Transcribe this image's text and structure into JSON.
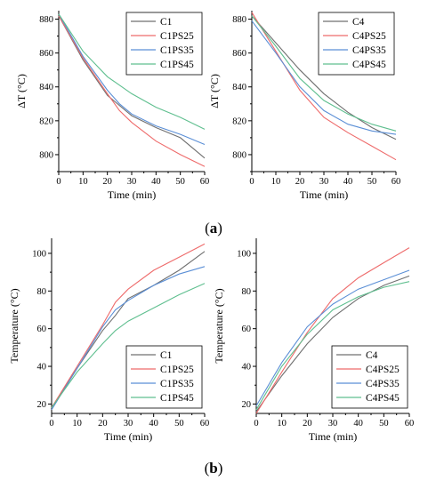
{
  "colors": {
    "C": "#707070",
    "PS25": "#ee6b6b",
    "PS35": "#5b8fd6",
    "PS45": "#5fbf8f",
    "axis": "#000000"
  },
  "panel_labels": [
    {
      "open": "(",
      "letter": "a",
      "close": ")"
    },
    {
      "open": "(",
      "letter": "b",
      "close": ")"
    }
  ],
  "chart_data": [
    {
      "type": "line",
      "ylabel": "ΔT (°C)",
      "xlabel": "Time (min)",
      "xlim": [
        0,
        60
      ],
      "ylim": [
        790,
        885
      ],
      "xticks": [
        0,
        10,
        20,
        30,
        40,
        50,
        60
      ],
      "yticks": [
        800,
        820,
        840,
        860,
        880
      ],
      "legend_position": "top-right",
      "series": [
        {
          "name": "C1",
          "color_key": "C",
          "x": [
            0,
            10,
            20,
            30,
            40,
            50,
            60
          ],
          "y": [
            882,
            856,
            835,
            823,
            816,
            810,
            798
          ]
        },
        {
          "name": "C1PS25",
          "color_key": "PS25",
          "x": [
            0,
            10,
            20,
            25,
            30,
            40,
            50,
            60
          ],
          "y": [
            882,
            857,
            836,
            826,
            819,
            808,
            800,
            793
          ]
        },
        {
          "name": "C1PS35",
          "color_key": "PS35",
          "x": [
            0,
            10,
            20,
            25,
            30,
            40,
            50,
            60
          ],
          "y": [
            883,
            858,
            838,
            830,
            824,
            817,
            812,
            806
          ]
        },
        {
          "name": "C1PS45",
          "color_key": "PS45",
          "x": [
            0,
            10,
            20,
            25,
            30,
            40,
            50,
            60
          ],
          "y": [
            883,
            861,
            846,
            841,
            836,
            828,
            822,
            815
          ]
        }
      ]
    },
    {
      "type": "line",
      "ylabel": "ΔT (°C)",
      "xlabel": "Time (min)",
      "xlim": [
        0,
        60
      ],
      "ylim": [
        790,
        885
      ],
      "xticks": [
        0,
        10,
        20,
        30,
        40,
        50,
        60
      ],
      "yticks": [
        800,
        820,
        840,
        860,
        880
      ],
      "legend_position": "top-right",
      "series": [
        {
          "name": "C4",
          "color_key": "C",
          "x": [
            0,
            10,
            20,
            30,
            40,
            50,
            60
          ],
          "y": [
            882,
            866,
            850,
            836,
            825,
            816,
            809
          ]
        },
        {
          "name": "C4PS25",
          "color_key": "PS25",
          "x": [
            0,
            10,
            20,
            30,
            40,
            50,
            60
          ],
          "y": [
            884,
            861,
            838,
            822,
            813,
            805,
            797
          ]
        },
        {
          "name": "C4PS35",
          "color_key": "PS35",
          "x": [
            0,
            10,
            20,
            30,
            40,
            50,
            60
          ],
          "y": [
            879,
            860,
            840,
            826,
            818,
            814,
            812
          ]
        },
        {
          "name": "C4PS45",
          "color_key": "PS45",
          "x": [
            0,
            10,
            20,
            30,
            40,
            50,
            60
          ],
          "y": [
            882,
            864,
            845,
            832,
            824,
            818,
            814
          ]
        }
      ]
    },
    {
      "type": "line",
      "ylabel": "Temperature (°C)",
      "xlabel": "Time (min)",
      "xlim": [
        0,
        60
      ],
      "ylim": [
        15,
        108
      ],
      "xticks": [
        0,
        10,
        20,
        30,
        40,
        50,
        60
      ],
      "yticks": [
        20,
        40,
        60,
        80,
        100
      ],
      "legend_position": "bottom-right",
      "series": [
        {
          "name": "C1",
          "color_key": "C",
          "x": [
            0,
            10,
            20,
            25,
            30,
            40,
            50,
            60
          ],
          "y": [
            18,
            39,
            59,
            67,
            76,
            83,
            91,
            101
          ]
        },
        {
          "name": "C1PS25",
          "color_key": "PS25",
          "x": [
            0,
            10,
            20,
            25,
            30,
            40,
            50,
            60
          ],
          "y": [
            18,
            40,
            62,
            74,
            81,
            91,
            98,
            105
          ]
        },
        {
          "name": "C1PS35",
          "color_key": "PS35",
          "x": [
            0,
            10,
            20,
            25,
            30,
            40,
            50,
            60
          ],
          "y": [
            17,
            39,
            61,
            70,
            75,
            83,
            89,
            93
          ]
        },
        {
          "name": "C1PS45",
          "color_key": "PS45",
          "x": [
            0,
            10,
            20,
            25,
            30,
            40,
            50,
            60
          ],
          "y": [
            18,
            37,
            52,
            59,
            64,
            71,
            78,
            84
          ]
        }
      ]
    },
    {
      "type": "line",
      "ylabel": "Temperature (°C)",
      "xlabel": "Time (min)",
      "xlim": [
        0,
        60
      ],
      "ylim": [
        15,
        108
      ],
      "xticks": [
        0,
        10,
        20,
        30,
        40,
        50,
        60
      ],
      "yticks": [
        20,
        40,
        60,
        80,
        100
      ],
      "legend_position": "bottom-right",
      "series": [
        {
          "name": "C4",
          "color_key": "C",
          "x": [
            0,
            10,
            20,
            30,
            40,
            50,
            60
          ],
          "y": [
            16,
            35,
            52,
            66,
            76,
            83,
            88
          ]
        },
        {
          "name": "C4PS25",
          "color_key": "PS25",
          "x": [
            0,
            10,
            20,
            30,
            40,
            50,
            60
          ],
          "y": [
            15,
            37,
            58,
            76,
            87,
            95,
            103
          ]
        },
        {
          "name": "C4PS35",
          "color_key": "PS35",
          "x": [
            0,
            10,
            20,
            30,
            40,
            50,
            60
          ],
          "y": [
            19,
            42,
            61,
            73,
            81,
            86,
            91
          ]
        },
        {
          "name": "C4PS45",
          "color_key": "PS45",
          "x": [
            0,
            10,
            20,
            30,
            40,
            50,
            60
          ],
          "y": [
            17,
            40,
            57,
            70,
            77,
            82,
            85
          ]
        }
      ]
    }
  ]
}
